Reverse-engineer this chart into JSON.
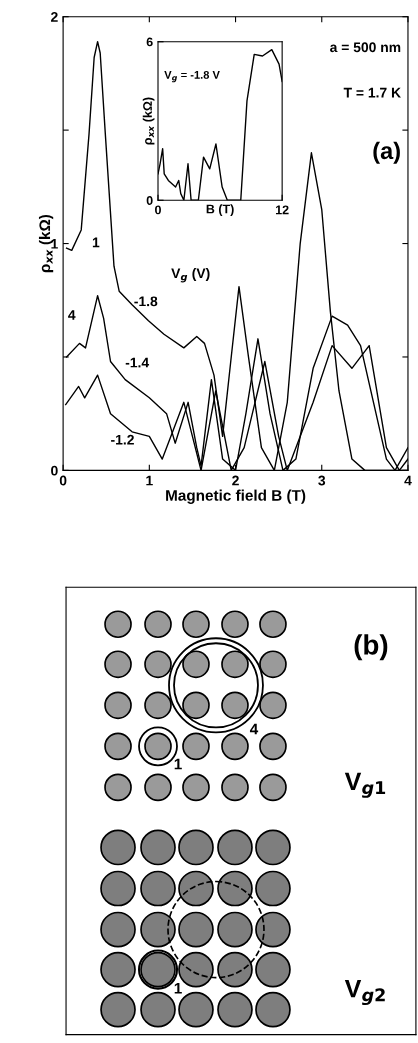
{
  "chart_data": [
    {
      "type": "line",
      "xlabel": "Magnetic field B (T)",
      "ylabel": "ρ$_{xx}$ (kΩ)",
      "xlim": [
        0,
        4
      ],
      "ylim": [
        0,
        2
      ],
      "xticks": [
        0,
        1,
        2,
        3,
        4
      ],
      "yticks": [
        0,
        {
          "value": 0.5,
          "label": null
        },
        1,
        {
          "value": 1.5,
          "label": null
        },
        2
      ],
      "grid": false,
      "legend": false,
      "marker": "none",
      "line_style": "solid",
      "annotations": [
        "a = 500 nm",
        "T = 1.7 K",
        "(a)",
        "V$_{g}$ (V)",
        "1",
        "4"
      ],
      "series": [
        {
          "name": "-1.8",
          "color": "#000000",
          "x": [
            0.04,
            0.1,
            0.21,
            0.3,
            0.36,
            0.4,
            0.43,
            0.49,
            0.59,
            0.65,
            0.8,
            0.99,
            1.17,
            1.4,
            1.55,
            1.64,
            1.75,
            1.85,
            1.95,
            2.04,
            2.15,
            2.3,
            2.45,
            2.6,
            2.75,
            2.88,
            3.0,
            3.1,
            3.2,
            3.35,
            3.5,
            3.7,
            4.0
          ],
          "values": [
            0.98,
            0.97,
            1.06,
            1.48,
            1.82,
            1.89,
            1.84,
            1.48,
            0.9,
            0.79,
            0.73,
            0.66,
            0.6,
            0.54,
            0.59,
            0.56,
            0.42,
            0.15,
            0.5,
            0.81,
            0.5,
            0.1,
            0.0,
            0.3,
            1.0,
            1.4,
            1.15,
            0.7,
            0.35,
            0.05,
            0.0,
            0.0,
            0.0
          ]
        },
        {
          "name": "-1.4",
          "color": "#000000",
          "x": [
            0.04,
            0.19,
            0.26,
            0.4,
            0.47,
            0.55,
            0.72,
            1.0,
            1.2,
            1.3,
            1.45,
            1.55,
            1.6,
            1.72,
            1.85,
            2.0,
            2.12,
            2.26,
            2.4,
            2.55,
            2.7,
            2.9,
            3.12,
            3.3,
            3.45,
            3.6,
            3.75,
            3.85,
            4.0
          ],
          "values": [
            0.5,
            0.56,
            0.54,
            0.77,
            0.67,
            0.48,
            0.4,
            0.32,
            0.25,
            0.12,
            0.3,
            0.1,
            0.02,
            0.4,
            0.05,
            0.0,
            0.25,
            0.58,
            0.25,
            0.0,
            0.05,
            0.45,
            0.68,
            0.64,
            0.55,
            0.3,
            0.05,
            0.0,
            0.1
          ]
        },
        {
          "name": "-1.2",
          "color": "#000000",
          "x": [
            0.03,
            0.18,
            0.25,
            0.4,
            0.55,
            0.8,
            1.0,
            1.15,
            1.3,
            1.4,
            1.5,
            1.6,
            1.77,
            1.95,
            2.1,
            2.34,
            2.5,
            2.6,
            2.9,
            3.12,
            3.35,
            3.55,
            3.75,
            3.9,
            4.0
          ],
          "values": [
            0.29,
            0.37,
            0.32,
            0.42,
            0.25,
            0.17,
            0.15,
            0.05,
            0.2,
            0.3,
            0.15,
            0.0,
            0.35,
            0.0,
            0.1,
            0.48,
            0.15,
            0.0,
            0.3,
            0.55,
            0.45,
            0.55,
            0.1,
            0.0,
            0.05
          ]
        }
      ]
    },
    {
      "type": "line",
      "xlabel": "B (T)",
      "ylabel": "ρ$_{xx}$ (kΩ)",
      "xlim": [
        0,
        12
      ],
      "ylim": [
        0,
        6
      ],
      "xticks": [
        0,
        12
      ],
      "yticks": [
        0,
        6
      ],
      "grid": false,
      "marker": "none",
      "line_style": "solid",
      "annotations": [
        "V$_{g}$ = -1.8 V"
      ],
      "series": [
        {
          "color": "#000000",
          "x": [
            0,
            0.2,
            0.45,
            0.6,
            1.0,
            1.7,
            2.0,
            2.2,
            2.5,
            2.9,
            3.2,
            3.9,
            4.4,
            5.0,
            5.6,
            6.2,
            6.7,
            8.0,
            8.6,
            9.3,
            10.1,
            11.0,
            11.7,
            12.0
          ],
          "values": [
            1.0,
            1.38,
            1.95,
            1.0,
            0.75,
            0.5,
            0.75,
            0.25,
            0.0,
            1.38,
            0.0,
            0.0,
            1.63,
            1.19,
            2.13,
            0.5,
            0.0,
            0.0,
            3.76,
            5.52,
            5.46,
            5.7,
            5.15,
            4.5
          ]
        }
      ]
    },
    {
      "type": "other",
      "annotations": [
        "(b)",
        "V$_{g1}$",
        "V$_{g2}$",
        "1",
        "4",
        "1"
      ]
    }
  ]
}
